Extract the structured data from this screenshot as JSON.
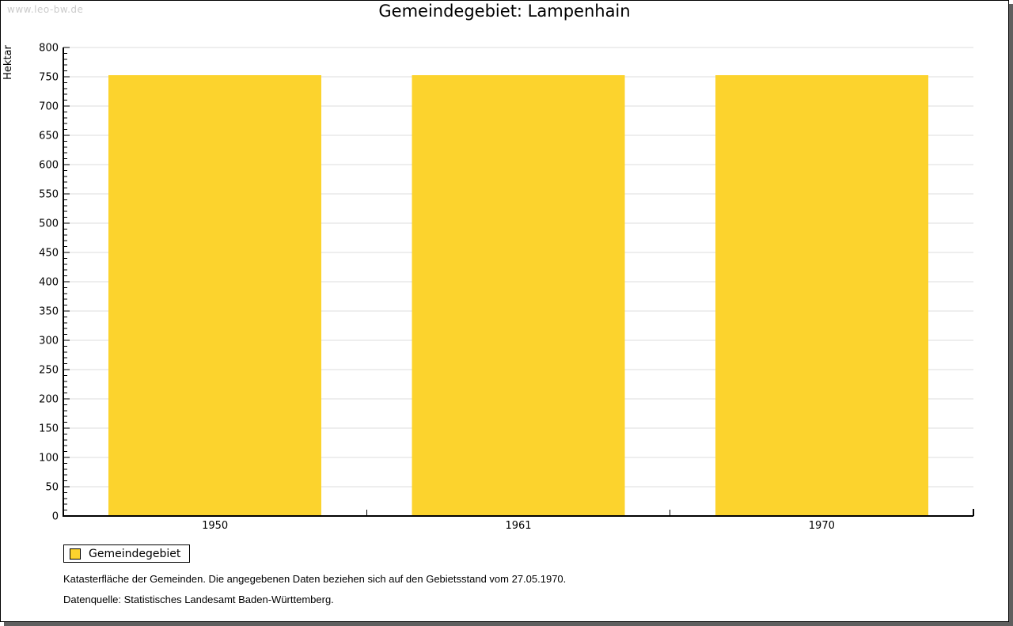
{
  "page": {
    "watermark": "www.leo-bw.de",
    "title": "Gemeindegebiet: Lampenhain"
  },
  "legend": {
    "label": "Gemeindegebiet"
  },
  "notes": {
    "line1": "Katasterfläche der Gemeinden. Die angegebenen Daten beziehen sich auf den Gebietsstand vom 27.05.1970.",
    "line2": "Datenquelle: Statistisches Landesamt Baden-Württemberg."
  },
  "colors": {
    "bar": "#fcd32d",
    "grid": "#dcdcdc",
    "axis": "#000000",
    "watermark": "#cbcbcb"
  },
  "chart_data": {
    "type": "bar",
    "title": "Gemeindegebiet: Lampenhain",
    "categories": [
      "1950",
      "1961",
      "1970"
    ],
    "series": [
      {
        "name": "Gemeindegebiet",
        "values": [
          753,
          753,
          753
        ]
      }
    ],
    "xlabel": "",
    "ylabel": "Hektar",
    "ylim": [
      0,
      800
    ],
    "ytick_major": 50,
    "ytick_minor": 10,
    "grid": true,
    "legend_position": "bottom-left",
    "bar_color": "#fcd32d"
  }
}
